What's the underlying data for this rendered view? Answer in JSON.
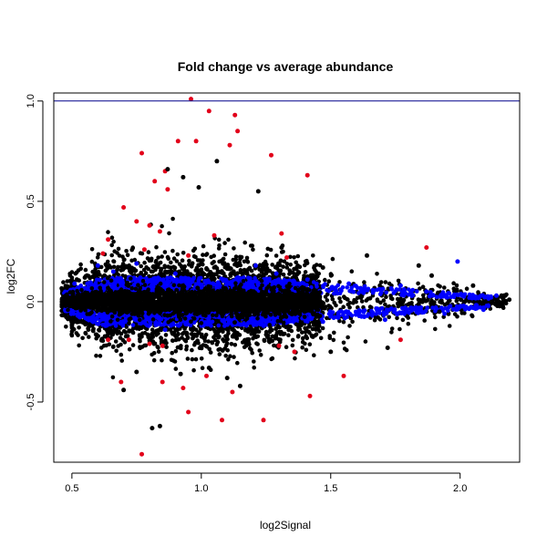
{
  "chart_data": {
    "type": "scatter",
    "title": "Fold change vs average abundance",
    "xlabel": "log2Signal",
    "ylabel": "log2FC",
    "xlim": [
      0.43,
      2.23
    ],
    "ylim": [
      -0.8,
      1.04
    ],
    "xticks": [
      0.5,
      1.0,
      1.5,
      2.0
    ],
    "xtick_labels": [
      "0.5",
      "1.0",
      "1.5",
      "2.0"
    ],
    "yticks": [
      -0.5,
      0.0,
      0.5,
      1.0
    ],
    "ytick_labels": [
      "-0.5",
      "0.0",
      "0.5",
      "1.0"
    ],
    "grid": false,
    "legend": "none",
    "reference_line": {
      "y": 1.0,
      "color": "#00008b"
    },
    "colors": {
      "black": "#000000",
      "red": "#e2001a",
      "blue": "#0000ff"
    },
    "series": [
      {
        "color": "red",
        "points": [
          [
            0.96,
            1.01
          ],
          [
            1.03,
            0.95
          ],
          [
            1.13,
            0.93
          ],
          [
            1.14,
            0.85
          ],
          [
            0.98,
            0.8
          ],
          [
            0.91,
            0.8
          ],
          [
            1.11,
            0.78
          ],
          [
            0.77,
            0.74
          ],
          [
            1.27,
            0.73
          ],
          [
            0.86,
            0.65
          ],
          [
            1.41,
            0.63
          ],
          [
            0.82,
            0.6
          ],
          [
            0.87,
            0.56
          ],
          [
            0.7,
            0.47
          ],
          [
            0.75,
            0.4
          ],
          [
            0.8,
            0.38
          ],
          [
            0.84,
            0.35
          ],
          [
            0.64,
            0.31
          ],
          [
            1.05,
            0.33
          ],
          [
            1.31,
            0.34
          ],
          [
            1.33,
            0.22
          ],
          [
            0.78,
            0.26
          ],
          [
            1.87,
            0.27
          ],
          [
            0.62,
            0.24
          ],
          [
            0.95,
            0.23
          ],
          [
            0.72,
            -0.19
          ],
          [
            0.8,
            -0.21
          ],
          [
            0.85,
            -0.22
          ],
          [
            0.64,
            -0.19
          ],
          [
            1.3,
            -0.22
          ],
          [
            1.36,
            -0.25
          ],
          [
            1.77,
            -0.19
          ],
          [
            0.85,
            -0.4
          ],
          [
            0.93,
            -0.43
          ],
          [
            1.02,
            -0.37
          ],
          [
            1.12,
            -0.45
          ],
          [
            1.42,
            -0.47
          ],
          [
            0.95,
            -0.55
          ],
          [
            1.08,
            -0.59
          ],
          [
            1.24,
            -0.59
          ],
          [
            0.77,
            -0.76
          ],
          [
            1.55,
            -0.37
          ],
          [
            0.69,
            -0.4
          ]
        ]
      },
      {
        "color": "black",
        "points": [
          [
            0.93,
            0.62
          ],
          [
            0.87,
            0.66
          ],
          [
            0.99,
            0.57
          ],
          [
            1.06,
            0.7
          ],
          [
            1.22,
            0.55
          ],
          [
            1.31,
            0.27
          ],
          [
            1.64,
            0.23
          ],
          [
            1.84,
            0.18
          ],
          [
            1.89,
            0.13
          ],
          [
            2.05,
            0.08
          ],
          [
            2.16,
            0.03
          ],
          [
            2.19,
            0.01
          ],
          [
            1.92,
            -0.05
          ],
          [
            0.81,
            -0.63
          ],
          [
            0.84,
            -0.62
          ],
          [
            0.75,
            -0.35
          ],
          [
            0.7,
            -0.44
          ],
          [
            1.72,
            -0.23
          ],
          [
            1.5,
            -0.25
          ],
          [
            1.1,
            -0.38
          ],
          [
            1.15,
            -0.42
          ],
          [
            0.92,
            -0.36
          ],
          [
            1.03,
            -0.33
          ],
          [
            1.47,
            0.17
          ],
          [
            0.55,
            0.12
          ]
        ]
      },
      {
        "color": "blue",
        "points": [
          [
            0.6,
            0.18
          ],
          [
            0.66,
            0.15
          ],
          [
            0.75,
            0.19
          ],
          [
            0.9,
            0.14
          ],
          [
            1.21,
            0.18
          ],
          [
            1.29,
            0.14
          ],
          [
            1.41,
            0.11
          ],
          [
            1.57,
            0.09
          ],
          [
            1.77,
            0.08
          ],
          [
            1.87,
            0.05
          ],
          [
            1.99,
            0.2
          ],
          [
            2.14,
            0.03
          ],
          [
            0.63,
            -0.12
          ],
          [
            0.86,
            -0.14
          ],
          [
            1.24,
            -0.12
          ],
          [
            1.47,
            -0.1
          ],
          [
            1.71,
            -0.09
          ],
          [
            1.94,
            -0.06
          ],
          [
            2.09,
            -0.04
          ],
          [
            0.51,
            0.09
          ]
        ]
      }
    ]
  }
}
